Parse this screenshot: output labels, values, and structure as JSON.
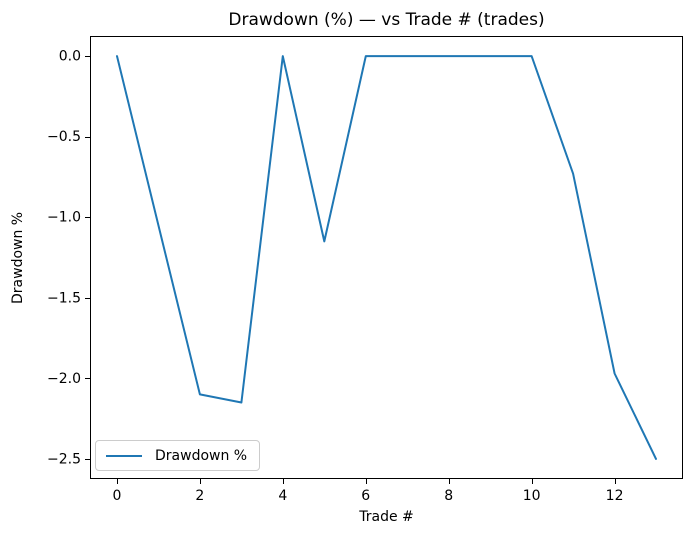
{
  "figure": {
    "background_color": "#ffffff",
    "text_color": "#000000",
    "spine_color": "#000000"
  },
  "chart_data": {
    "type": "line",
    "title": "Drawdown (%) — vs Trade # (trades)",
    "xlabel": "Trade #",
    "ylabel": "Drawdown %",
    "x": [
      0,
      1,
      2,
      3,
      4,
      5,
      6,
      7,
      8,
      9,
      10,
      11,
      12,
      13
    ],
    "series": [
      {
        "name": "Drawdown %",
        "color": "#1f77b4",
        "values": [
          0.0,
          -1.05,
          -2.1,
          -2.15,
          0.0,
          -1.15,
          0.0,
          0.0,
          0.0,
          0.0,
          0.0,
          -0.73,
          -1.97,
          -2.5
        ]
      }
    ],
    "xlim": [
      -0.65,
      13.65
    ],
    "ylim": [
      -2.625,
      0.125
    ],
    "xticks": [
      0,
      2,
      4,
      6,
      8,
      10,
      12
    ],
    "xtick_labels": [
      "0",
      "2",
      "4",
      "6",
      "8",
      "10",
      "12"
    ],
    "yticks": [
      0.0,
      -0.5,
      -1.0,
      -1.5,
      -2.0,
      -2.5
    ],
    "ytick_labels": [
      "0.0",
      "−0.5",
      "−1.0",
      "−1.5",
      "−2.0",
      "−2.5"
    ],
    "grid": false,
    "legend": {
      "position": "lower left",
      "entries": [
        "Drawdown %"
      ]
    }
  }
}
